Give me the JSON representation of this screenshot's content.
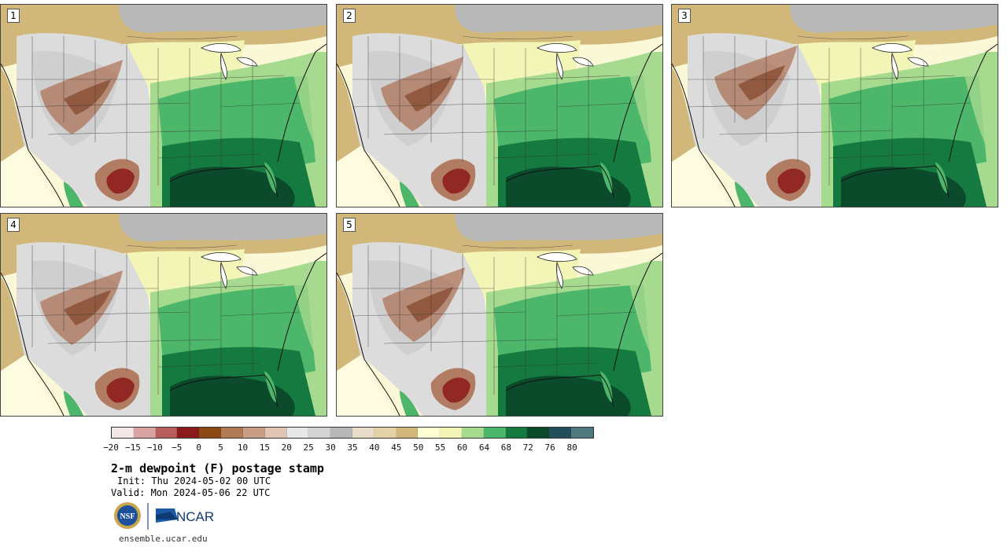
{
  "panels": [
    {
      "label": "1",
      "variant": 0
    },
    {
      "label": "2",
      "variant": 1
    },
    {
      "label": "3",
      "variant": 2
    },
    {
      "label": "4",
      "variant": 3
    },
    {
      "label": "5",
      "variant": 4
    }
  ],
  "colorbar": {
    "colors": [
      "#f3e6e6",
      "#d9a3a3",
      "#b85c5c",
      "#8b1a1a",
      "#8b4a14",
      "#b07a55",
      "#c89e85",
      "#e0c4b4",
      "#e8e8e8",
      "#d4d4d4",
      "#b8b8b8",
      "#e6dcc8",
      "#e3d2a8",
      "#d1b77a",
      "#ffffd6",
      "#f2f5b5",
      "#a6da8f",
      "#4cb76a",
      "#147a3f",
      "#0b4a2b",
      "#234f5a",
      "#4f7b80"
    ],
    "ticks": [
      "−20",
      "−15",
      "−10",
      "−5",
      "0",
      "5",
      "10",
      "15",
      "20",
      "25",
      "30",
      "35",
      "40",
      "45",
      "50",
      "55",
      "60",
      "64",
      "68",
      "72",
      "76",
      "80"
    ]
  },
  "title": "2-m dewpoint (F) postage stamp",
  "init": "Init: Thu 2024-05-02 00 UTC",
  "valid": "Valid: Mon 2024-05-06 22 UTC",
  "logos": {
    "nsf_text": "NSF",
    "ncar_text": "NCAR"
  },
  "site": "ensemble.ucar.edu",
  "colors": {
    "gulf_deep": "#0b4a2b",
    "moist_green": "#147a3f",
    "mid_green": "#4cb76a",
    "light_green": "#a6da8f",
    "pale_yellow": "#f2f5b5",
    "tan": "#d1b77a",
    "gray": "#b8b8b8",
    "light_gray": "#dcdcdc",
    "dry_brown": "#a0522d",
    "dry_red": "#8b1a1a"
  }
}
